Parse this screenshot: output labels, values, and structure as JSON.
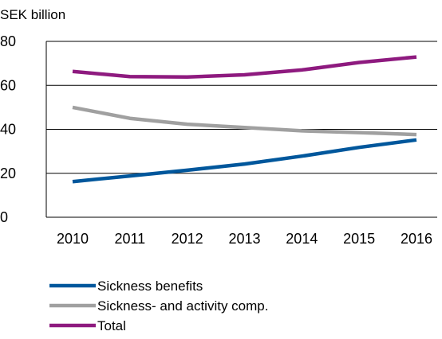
{
  "chart_data": {
    "type": "line",
    "title": "",
    "unit_label": "SEK billion",
    "xlabel": "",
    "ylabel": "",
    "x": [
      "2010",
      "2011",
      "2012",
      "2013",
      "2014",
      "2015",
      "2016"
    ],
    "ylim": [
      0,
      80
    ],
    "yticks": [
      0,
      20,
      40,
      60,
      80
    ],
    "grid": true,
    "legend_position": "bottom-left",
    "series": [
      {
        "name": "Sickness benefits",
        "color": "#00579c",
        "values": [
          16.2,
          18.8,
          21.4,
          24.2,
          27.8,
          31.8,
          35.2
        ]
      },
      {
        "name": "Sickness- and activity comp.",
        "color": "#a0a0a0",
        "values": [
          50.0,
          45.0,
          42.3,
          40.8,
          39.3,
          38.5,
          37.6
        ]
      },
      {
        "name": "Total",
        "color": "#8e1a7f",
        "values": [
          66.3,
          64.0,
          63.8,
          64.8,
          67.0,
          70.4,
          72.9
        ]
      }
    ]
  }
}
